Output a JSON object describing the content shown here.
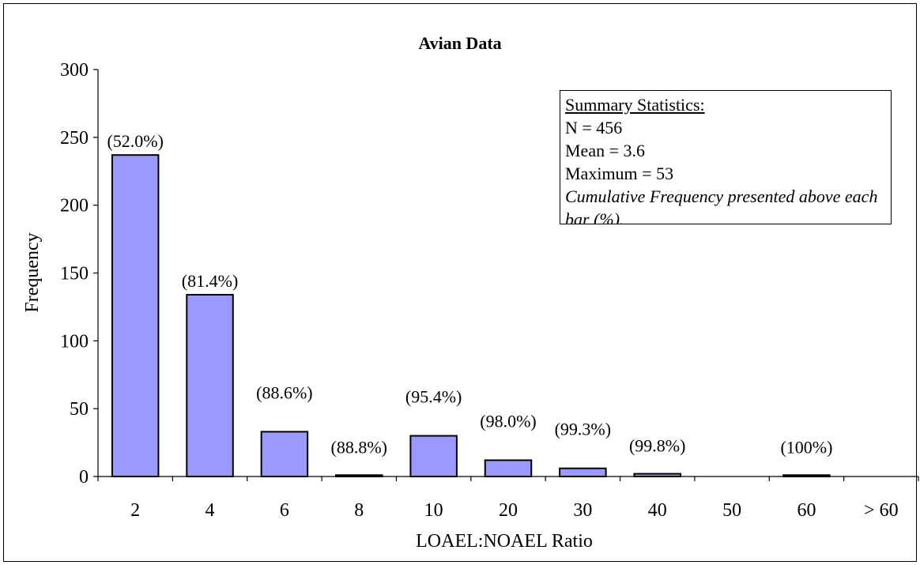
{
  "chart_data": {
    "type": "bar",
    "title": "Avian Data",
    "xlabel": "LOAEL:NOAEL Ratio",
    "ylabel": "Frequency",
    "ylim": [
      0,
      300
    ],
    "yticks": [
      "0",
      "50",
      "100",
      "150",
      "200",
      "250",
      "300"
    ],
    "categories": [
      "2",
      "4",
      "6",
      "8",
      "10",
      "20",
      "30",
      "40",
      "50",
      "60",
      "> 60"
    ],
    "values": [
      237,
      134,
      33,
      1,
      30,
      12,
      6,
      2,
      0,
      1,
      0
    ],
    "cumulative_labels": [
      "(52.0%)",
      "(81.4%)",
      "(88.6%)",
      "(88.8%)",
      "(95.4%)",
      "(98.0%)",
      "(99.3%)",
      "(99.8%)",
      "",
      "(100%)",
      ""
    ],
    "bar_color": "#9999ff",
    "grid": false,
    "summary": {
      "heading": "Summary Statistics:",
      "lines": [
        "N = 456",
        "Mean = 3.6",
        "Maximum = 53"
      ],
      "note": "Cumulative Frequency presented above each bar (%)."
    }
  }
}
